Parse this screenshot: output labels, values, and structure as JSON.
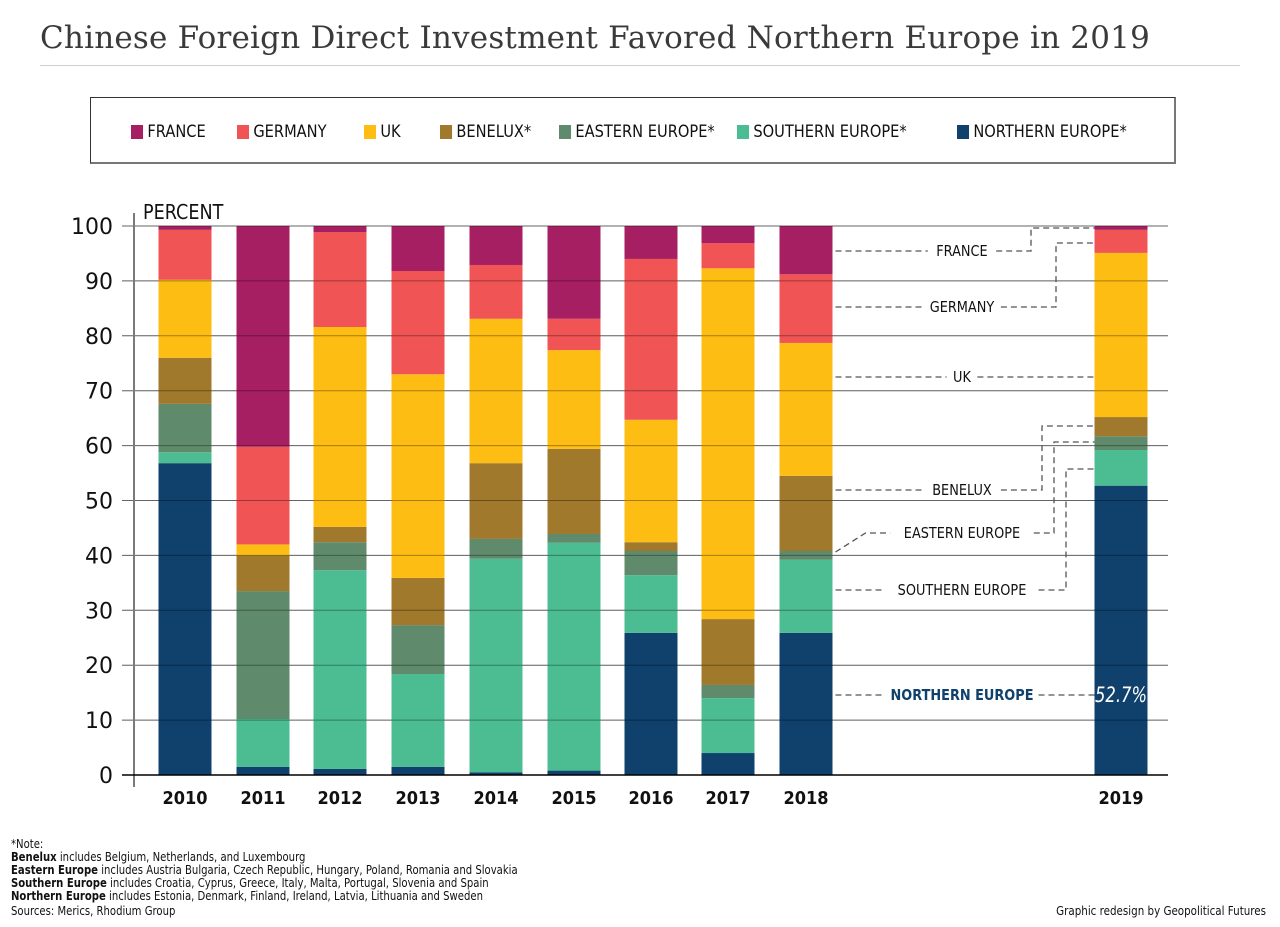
{
  "title": "Chinese Foreign Direct Investment Favored Northern Europe in 2019",
  "legend": [
    {
      "label": "FRANCE",
      "color": "#a51f62"
    },
    {
      "label": "GERMANY",
      "color": "#f05454"
    },
    {
      "label": "UK",
      "color": "#fdbd12"
    },
    {
      "label": "BENELUX*",
      "color": "#a0792d"
    },
    {
      "label": "EASTERN EUROPE*",
      "color": "#5f8a6b"
    },
    {
      "label": "SOUTHERN EUROPE*",
      "color": "#4cbd92"
    },
    {
      "label": "NORTHERN EUROPE*",
      "color": "#0f416c"
    }
  ],
  "chart_data": {
    "type": "bar",
    "stacked": true,
    "title": "Chinese Foreign Direct Investment Favored Northern Europe in 2019",
    "xlabel": "",
    "ylabel": "PERCENT",
    "ylim": [
      0,
      100
    ],
    "yticks": [
      0,
      10,
      20,
      30,
      40,
      50,
      60,
      70,
      80,
      90,
      100
    ],
    "grid": true,
    "legend_position": "top",
    "categories": [
      "2010",
      "2011",
      "2012",
      "2013",
      "2014",
      "2015",
      "2016",
      "2017",
      "2018",
      "2019"
    ],
    "series": [
      {
        "name": "NORTHERN EUROPE",
        "color": "#0f416c",
        "values": [
          56.8,
          1.5,
          1.1,
          1.5,
          0.5,
          0.8,
          25.9,
          4.0,
          25.9,
          52.7
        ]
      },
      {
        "name": "SOUTHERN EUROPE",
        "color": "#4cbd92",
        "values": [
          2.0,
          8.7,
          36.2,
          16.9,
          38.9,
          41.5,
          10.5,
          10.0,
          13.3,
          6.5
        ]
      },
      {
        "name": "EASTERN EUROPE",
        "color": "#5f8a6b",
        "values": [
          8.8,
          23.3,
          5.1,
          8.9,
          3.6,
          1.6,
          4.4,
          2.4,
          1.6,
          2.5
        ]
      },
      {
        "name": "BENELUX",
        "color": "#a0792d",
        "values": [
          8.4,
          6.5,
          2.8,
          8.6,
          13.8,
          15.5,
          1.6,
          12.0,
          13.7,
          3.5
        ]
      },
      {
        "name": "UK",
        "color": "#fdbd12",
        "values": [
          14.2,
          2.0,
          36.4,
          37.1,
          26.3,
          18.0,
          22.3,
          63.9,
          24.2,
          29.9
        ]
      },
      {
        "name": "GERMANY",
        "color": "#f05454",
        "values": [
          9.1,
          17.8,
          17.3,
          18.8,
          9.8,
          5.7,
          29.3,
          4.6,
          12.5,
          4.2
        ]
      },
      {
        "name": "FRANCE",
        "color": "#a51f62",
        "values": [
          0.7,
          40.2,
          1.1,
          8.2,
          7.1,
          16.9,
          6.0,
          3.1,
          8.8,
          0.7
        ]
      }
    ],
    "annotations": [
      {
        "label": "FRANCE",
        "series": "FRANCE"
      },
      {
        "label": "GERMANY",
        "series": "GERMANY"
      },
      {
        "label": "UK",
        "series": "UK"
      },
      {
        "label": "BENELUX",
        "series": "BENELUX"
      },
      {
        "label": "EASTERN EUROPE",
        "series": "EASTERN EUROPE"
      },
      {
        "label": "SOUTHERN EUROPE",
        "series": "SOUTHERN EUROPE"
      },
      {
        "label": "NORTHERN EUROPE",
        "series": "NORTHERN EUROPE",
        "highlight": true,
        "value_label": "52.7%"
      }
    ]
  },
  "notes": {
    "heading": "*Note:",
    "lines": [
      {
        "bold": "Benelux",
        "text": " includes Belgium, Netherlands, and Luxembourg"
      },
      {
        "bold": "Eastern Europe",
        "text": " includes Austria Bulgaria, Czech Republic, Hungary, Poland, Romania and Slovakia"
      },
      {
        "bold": "Southern Europe",
        "text": " includes Croatia, Cyprus, Greece, Italy, Malta, Portugal, Slovenia and Spain"
      },
      {
        "bold": "Northern Europe",
        "text": " includes Estonia, Denmark, Finland, Ireland, Latvia, Lithuania and Sweden"
      }
    ],
    "sources": "Sources: Merics, Rhodium Group"
  },
  "credit": "Graphic redesign by Geopolitical Futures"
}
